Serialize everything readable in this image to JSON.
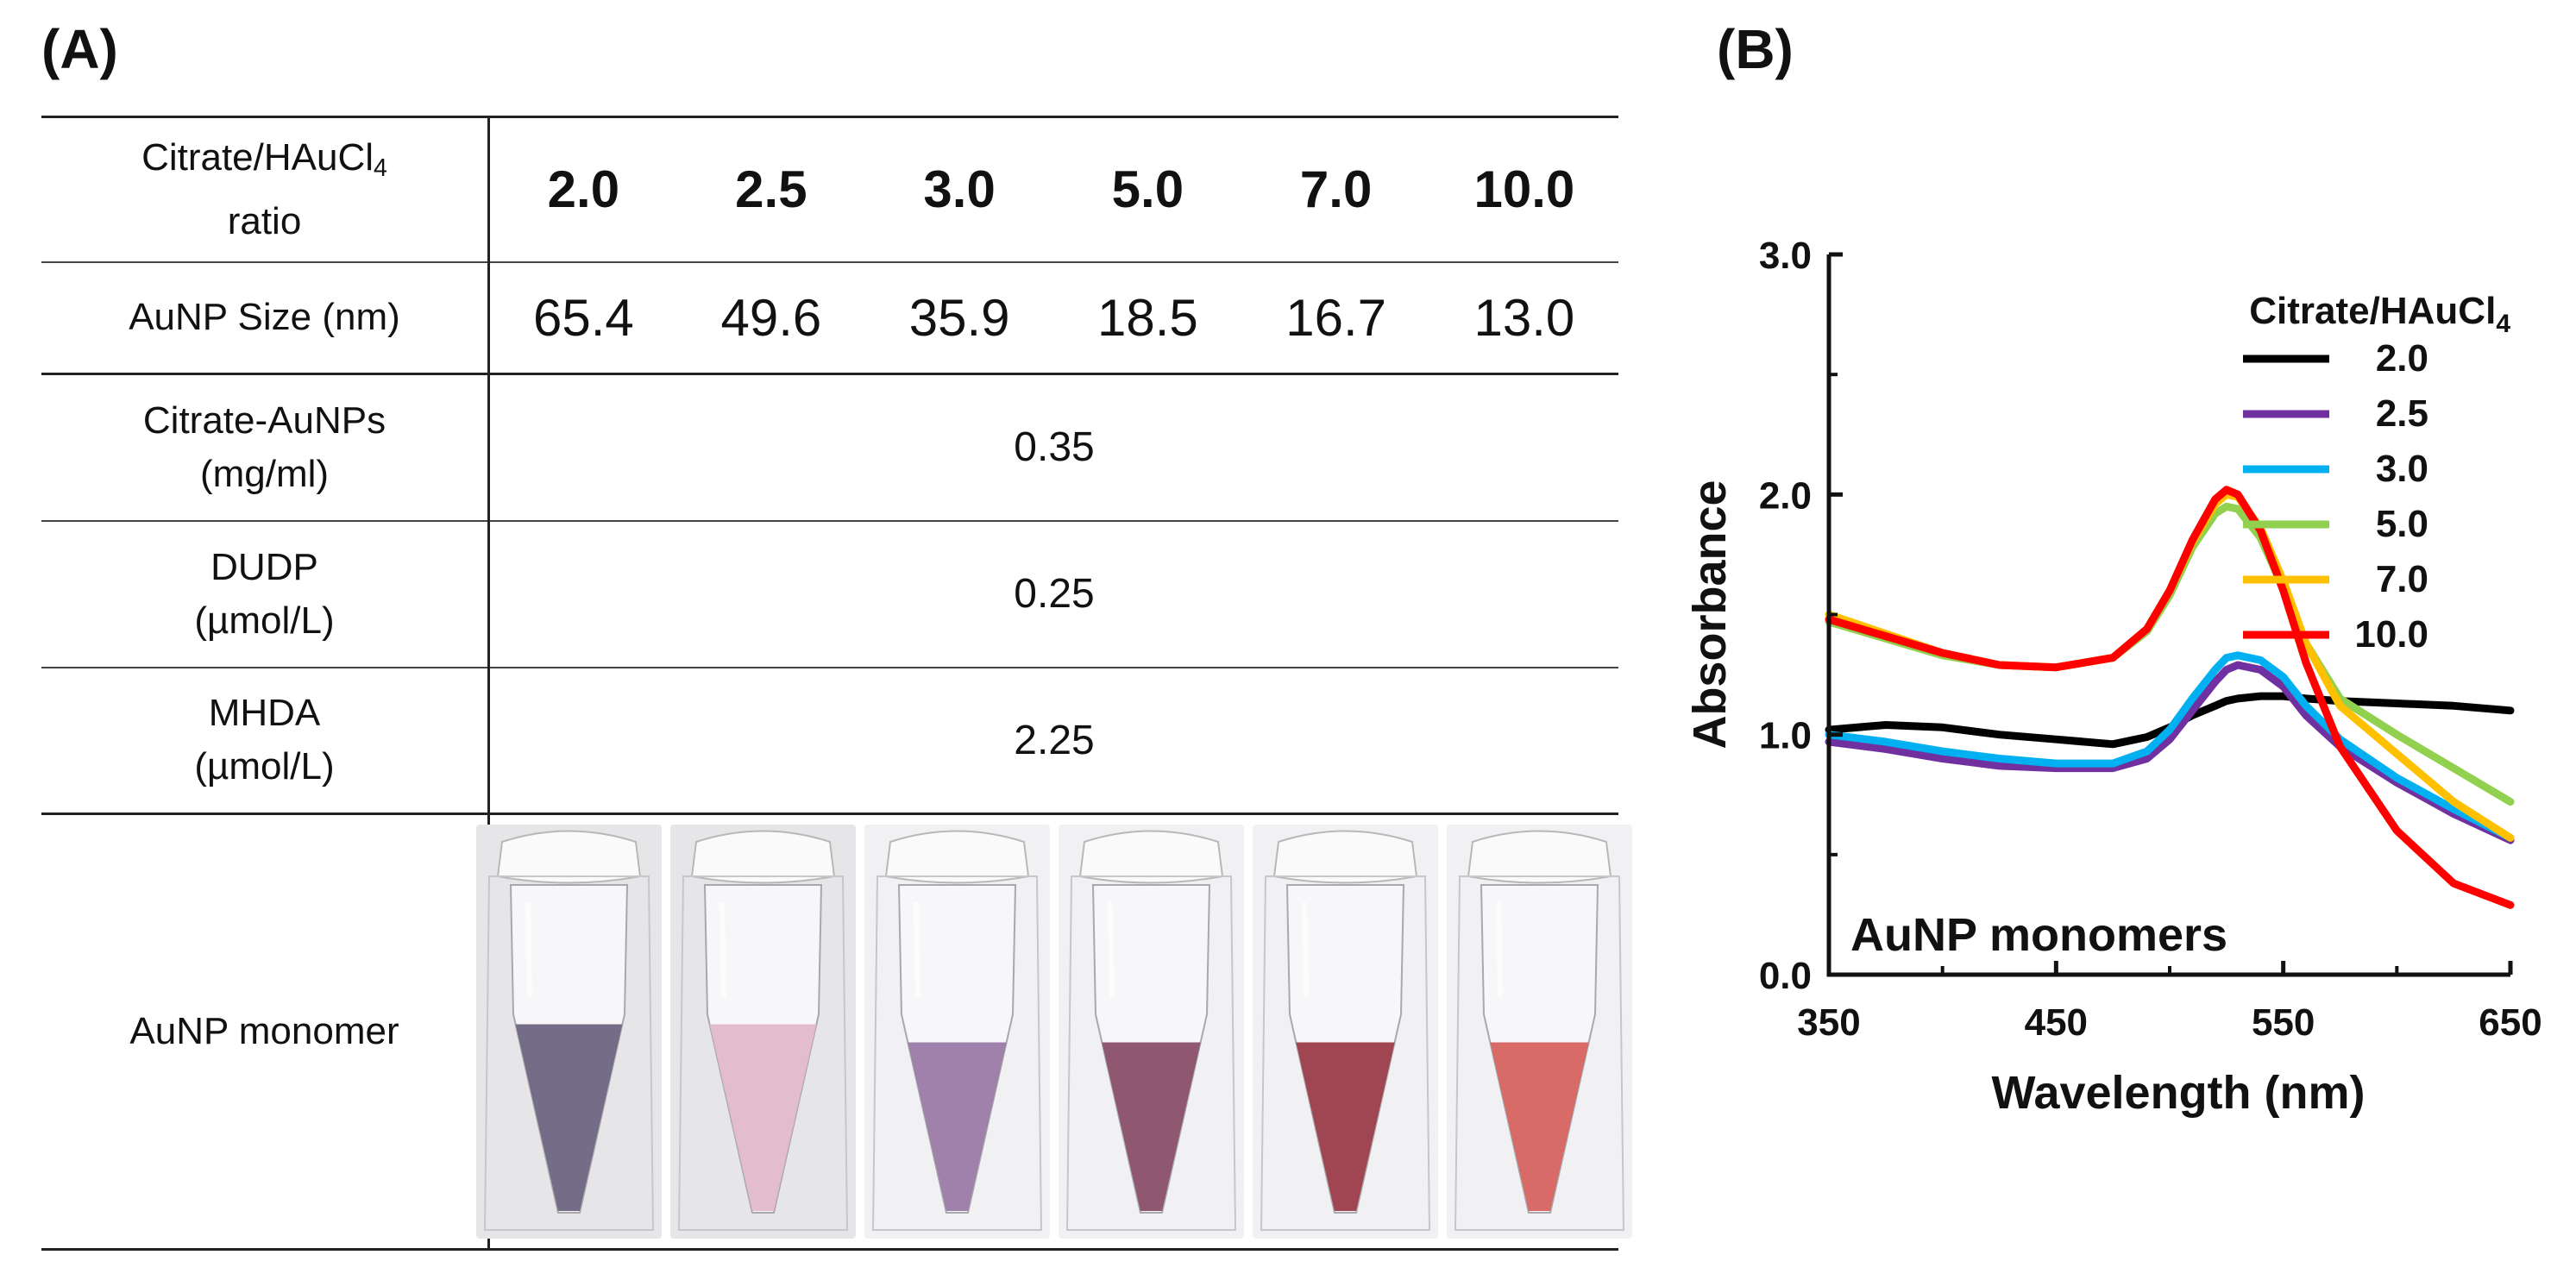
{
  "panel_a_label": "(A)",
  "panel_b_label": "(B)",
  "table": {
    "ratio_label_main": "Citrate/HAuCl",
    "ratio_label_sub": "4",
    "ratio_label_line2": "ratio",
    "ratios": [
      "2.0",
      "2.5",
      "3.0",
      "5.0",
      "7.0",
      "10.0"
    ],
    "size_label": "AuNP Size (nm)",
    "sizes": [
      "65.4",
      "49.6",
      "35.9",
      "18.5",
      "16.7",
      "13.0"
    ],
    "citrate_label_1": "Citrate-AuNPs",
    "citrate_label_2": "(mg/ml)",
    "citrate_value": "0.35",
    "dudp_label_1": "DUDP",
    "dudp_label_2": "(µmol/L)",
    "dudp_value": "0.25",
    "mhda_label_1": "MHDA",
    "mhda_label_2": "(µmol/L)",
    "mhda_value": "2.25",
    "monomer_label": "AuNP monomer",
    "vials": [
      {
        "liquid": "#6e6582",
        "level": "0.52"
      },
      {
        "liquid": "#e3b9c9",
        "level": "0.52"
      },
      {
        "liquid": "#9a7aa6",
        "level": "0.47"
      },
      {
        "liquid": "#8a4f68",
        "level": "0.47"
      },
      {
        "liquid": "#9b3c49",
        "level": "0.47"
      },
      {
        "liquid": "#d6625f",
        "level": "0.47"
      }
    ]
  },
  "chart_data": {
    "type": "line",
    "title": "",
    "xlabel": "Wavelength (nm)",
    "ylabel": "Absorbance",
    "xlim": [
      350,
      650
    ],
    "ylim": [
      0,
      3
    ],
    "xticks": [
      "350",
      "450",
      "550",
      "650"
    ],
    "yticks": [
      "0.0",
      "1.0",
      "2.0",
      "3.0"
    ],
    "annotation": "AuNP monomers",
    "legend_title_main": "Citrate/HAuCl",
    "legend_title_sub": "4",
    "legend_position": "top-right",
    "x": [
      350,
      375,
      400,
      425,
      450,
      475,
      490,
      500,
      510,
      520,
      525,
      530,
      540,
      550,
      560,
      575,
      600,
      625,
      650
    ],
    "series": [
      {
        "name": "2.0",
        "color": "#000000",
        "values": [
          1.02,
          1.04,
          1.03,
          1.0,
          0.98,
          0.96,
          0.99,
          1.03,
          1.08,
          1.12,
          1.14,
          1.15,
          1.16,
          1.16,
          1.15,
          1.14,
          1.13,
          1.12,
          1.1
        ]
      },
      {
        "name": "2.5",
        "color": "#7030a0",
        "values": [
          0.97,
          0.94,
          0.9,
          0.87,
          0.86,
          0.86,
          0.9,
          0.98,
          1.1,
          1.22,
          1.27,
          1.29,
          1.27,
          1.2,
          1.08,
          0.95,
          0.8,
          0.67,
          0.56
        ]
      },
      {
        "name": "3.0",
        "color": "#00b0f0",
        "values": [
          1.0,
          0.97,
          0.93,
          0.9,
          0.88,
          0.88,
          0.93,
          1.02,
          1.15,
          1.27,
          1.32,
          1.33,
          1.31,
          1.24,
          1.12,
          0.98,
          0.82,
          0.69,
          0.57
        ]
      },
      {
        "name": "5.0",
        "color": "#92d050",
        "values": [
          1.47,
          1.4,
          1.33,
          1.29,
          1.28,
          1.32,
          1.43,
          1.58,
          1.78,
          1.92,
          1.95,
          1.94,
          1.82,
          1.61,
          1.38,
          1.15,
          1.0,
          0.86,
          0.72
        ]
      },
      {
        "name": "7.0",
        "color": "#ffc000",
        "values": [
          1.5,
          1.42,
          1.34,
          1.29,
          1.28,
          1.32,
          1.44,
          1.6,
          1.8,
          1.96,
          2.0,
          1.99,
          1.86,
          1.64,
          1.38,
          1.12,
          0.92,
          0.72,
          0.57
        ]
      },
      {
        "name": "10.0",
        "color": "#ff0000",
        "values": [
          1.48,
          1.41,
          1.34,
          1.29,
          1.28,
          1.32,
          1.44,
          1.6,
          1.81,
          1.98,
          2.02,
          2.0,
          1.85,
          1.6,
          1.3,
          0.95,
          0.6,
          0.38,
          0.29
        ]
      }
    ]
  }
}
